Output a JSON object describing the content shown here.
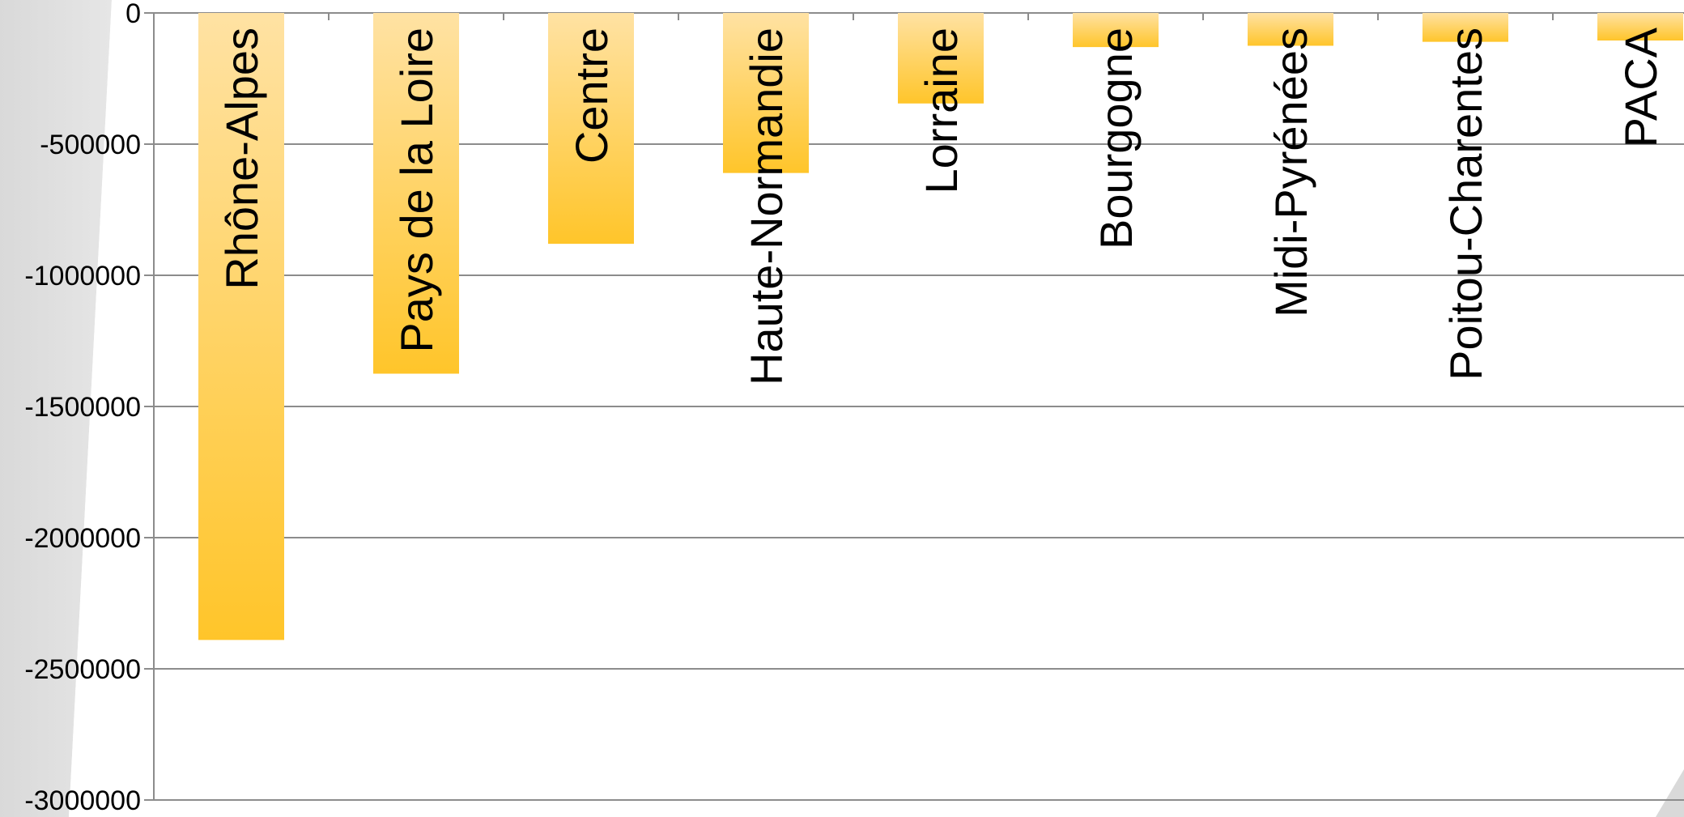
{
  "chart_data": {
    "type": "bar",
    "orientation": "vertical",
    "categories": [
      "Rhône-Alpes",
      "Pays de la Loire",
      "Centre",
      "Haute-Normandie",
      "Lorraine",
      "Bourgogne",
      "Midi-Pyrénées",
      "Poitou-Charentes",
      "PACA"
    ],
    "values": [
      -2390000,
      -1375000,
      -880000,
      -610000,
      -345000,
      -130000,
      -125000,
      -110000,
      -105000
    ],
    "title": "",
    "xlabel": "",
    "ylabel": "",
    "ylim": [
      -3000000,
      0
    ],
    "y_ticks": [
      "0",
      "-500000",
      "-1000000",
      "-1500000",
      "-2000000",
      "-2500000",
      "-3000000"
    ],
    "grid": true,
    "legend": "none",
    "category_labels_position": "inside-bars-rotated",
    "colors": {
      "bar_top": "#FFE2A3",
      "bar_bottom": "#FFC52A",
      "gridline": "#8c8c8c",
      "axis": "#8c8c8c",
      "panel_shadow": "#d9d9d9"
    }
  }
}
